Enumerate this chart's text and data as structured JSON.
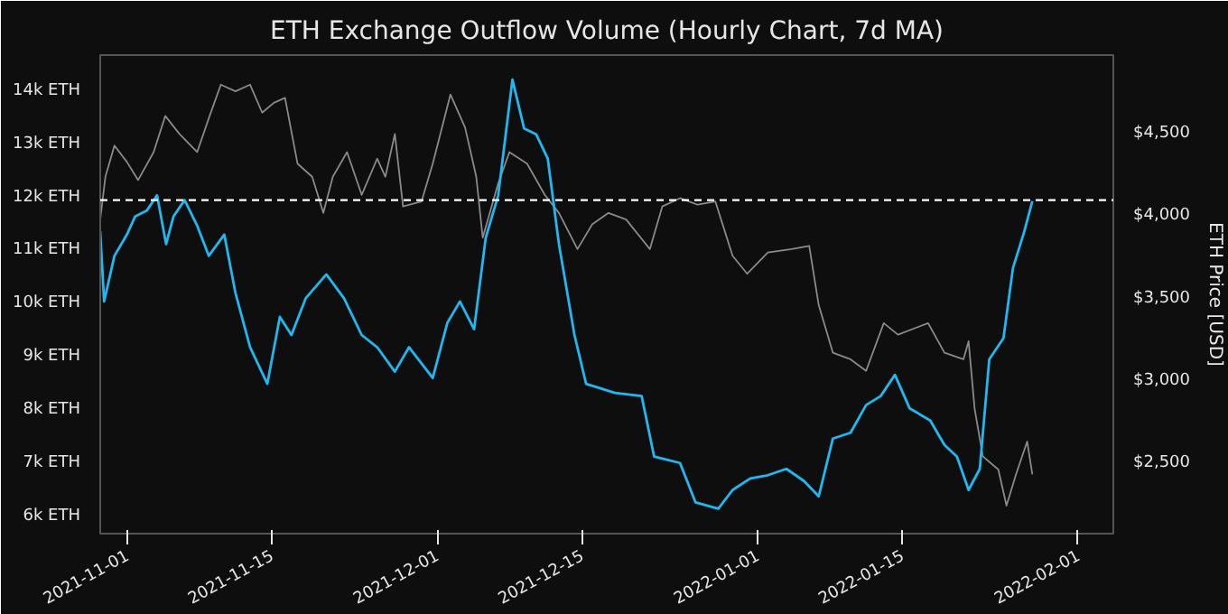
{
  "chart_data": {
    "type": "line",
    "title": "ETH Exchange Outflow Volume (Hourly Chart, 7d MA)",
    "y2label": "ETH Price [USD]",
    "xlim": [
      "2021-10-29T10:00",
      "2022-02-04T10:00"
    ],
    "xticks": [
      {
        "value": "2021-11-01",
        "label": "2021-11-01"
      },
      {
        "value": "2021-11-15",
        "label": "2021-11-15"
      },
      {
        "value": "2021-12-01",
        "label": "2021-12-01"
      },
      {
        "value": "2021-12-15",
        "label": "2021-12-15"
      },
      {
        "value": "2022-01-01",
        "label": "2022-01-01"
      },
      {
        "value": "2022-01-15",
        "label": "2022-01-15"
      },
      {
        "value": "2022-02-01",
        "label": "2022-02-01"
      }
    ],
    "ylim": [
      5670,
      14680
    ],
    "yticks": [
      {
        "value": 6000,
        "label": "6k ETH"
      },
      {
        "value": 7000,
        "label": "7k ETH"
      },
      {
        "value": 8000,
        "label": "8k ETH"
      },
      {
        "value": 9000,
        "label": "9k ETH"
      },
      {
        "value": 10000,
        "label": "10k ETH"
      },
      {
        "value": 11000,
        "label": "11k ETH"
      },
      {
        "value": 12000,
        "label": "12k ETH"
      },
      {
        "value": 13000,
        "label": "13k ETH"
      },
      {
        "value": 14000,
        "label": "14k ETH"
      }
    ],
    "y2lim": [
      2070,
      4980
    ],
    "y2ticks": [
      {
        "value": 2500,
        "label": "$2,500"
      },
      {
        "value": 3000,
        "label": "$3,000"
      },
      {
        "value": 3500,
        "label": "$3,500"
      },
      {
        "value": 4000,
        "label": "$4,000"
      },
      {
        "value": 4500,
        "label": "$4,500"
      }
    ],
    "grid": false,
    "ref_lines": [
      {
        "axis": "y",
        "value": 11950,
        "color": "#ffffff",
        "line_style": "dashed"
      }
    ],
    "series": [
      {
        "color": "#8a8a8a",
        "axis": "y2",
        "x": [
          "2021-10-29T10:00",
          "2021-10-29T22:00",
          "2021-10-30T19:00",
          "2021-11-01T00:00",
          "2021-11-02T02:00",
          "2021-11-03T14:00",
          "2021-11-04T17:00",
          "2021-11-06T02:00",
          "2021-11-07T19:00",
          "2021-11-09T00:00",
          "2021-11-10T02:00",
          "2021-11-11T12:00",
          "2021-11-12T22:00",
          "2021-11-14T02:00",
          "2021-11-15T05:00",
          "2021-11-16T07:00",
          "2021-11-17T12:00",
          "2021-11-18T22:00",
          "2021-11-20T00:00",
          "2021-11-20T22:00",
          "2021-11-22T07:00",
          "2021-11-23T17:00",
          "2021-11-25T05:00",
          "2021-11-26T00:00",
          "2021-11-26T22:00",
          "2021-11-27T17:00",
          "2021-11-29T12:00",
          "2021-11-30T14:00",
          "2021-12-02T07:00",
          "2021-12-03T17:00",
          "2021-12-04T19:00",
          "2021-12-05T10:00",
          "2021-12-06T22:00",
          "2021-12-08T00:00",
          "2021-12-09T17:00",
          "2021-12-11T10:00",
          "2021-12-12T19:00",
          "2021-12-14T14:00",
          "2021-12-16T00:00",
          "2021-12-17T14:00",
          "2021-12-19T07:00",
          "2021-12-21T14:00",
          "2021-12-22T19:00",
          "2021-12-24T12:00",
          "2021-12-26T05:00",
          "2021-12-27T22:00",
          "2021-12-29T14:00",
          "2021-12-31T00:00",
          "2022-01-02T00:00",
          "2022-01-04T07:00",
          "2022-01-06T00:00",
          "2022-01-06T22:00",
          "2022-01-08T07:00",
          "2022-01-10T00:00",
          "2022-01-11T12:00",
          "2022-01-13T05:00",
          "2022-01-14T14:00",
          "2022-01-17T12:00",
          "2022-01-19T02:00",
          "2022-01-20T22:00",
          "2022-01-21T10:00",
          "2022-01-22T00:00",
          "2022-01-22T19:00",
          "2022-01-24T07:00",
          "2022-01-25T02:00",
          "2022-01-26T00:00",
          "2022-01-27T02:00",
          "2022-01-27T14:00"
        ],
        "values": [
          3980,
          4240,
          4430,
          4330,
          4220,
          4390,
          4610,
          4500,
          4390,
          4610,
          4800,
          4760,
          4800,
          4630,
          4690,
          4720,
          4320,
          4240,
          4020,
          4240,
          4390,
          4130,
          4350,
          4240,
          4500,
          4060,
          4090,
          4320,
          4740,
          4540,
          4240,
          3870,
          4200,
          4390,
          4320,
          4130,
          4020,
          3800,
          3950,
          4020,
          3980,
          3800,
          4060,
          4110,
          4070,
          4090,
          3760,
          3650,
          3780,
          3800,
          3820,
          3460,
          3170,
          3130,
          3060,
          3350,
          3280,
          3350,
          3170,
          3130,
          3240,
          2830,
          2540,
          2460,
          2240,
          2430,
          2630,
          2430
        ]
      },
      {
        "color": "#1fb8f0",
        "x": [
          "2021-10-29T10:00",
          "2021-10-29T19:00",
          "2021-10-30T19:00",
          "2021-11-01T00:00",
          "2021-11-01T19:00",
          "2021-11-02T22:00",
          "2021-11-03T22:00",
          "2021-11-04T19:00",
          "2021-11-05T12:00",
          "2021-11-06T14:00",
          "2021-11-07T19:00",
          "2021-11-08T22:00",
          "2021-11-10T10:00",
          "2021-11-11T12:00",
          "2021-11-12T22:00",
          "2021-11-14T14:00",
          "2021-11-15T19:00",
          "2021-11-16T22:00",
          "2021-11-18T07:00",
          "2021-11-20T07:00",
          "2021-11-22T00:00",
          "2021-11-23T17:00",
          "2021-11-25T05:00",
          "2021-11-26T22:00",
          "2021-11-28T07:00",
          "2021-11-30T14:00",
          "2021-12-02T00:00",
          "2021-12-03T05:00",
          "2021-12-04T14:00",
          "2021-12-05T17:00",
          "2021-12-06T22:00",
          "2021-12-08T07:00",
          "2021-12-09T10:00",
          "2021-12-10T14:00",
          "2021-12-11T17:00",
          "2021-12-12T19:00",
          "2021-12-14T07:00",
          "2021-12-15T10:00",
          "2021-12-18T05:00",
          "2021-12-20T19:00",
          "2021-12-22T00:00",
          "2021-12-24T12:00",
          "2021-12-26T00:00",
          "2021-12-28T05:00",
          "2021-12-29T14:00",
          "2021-12-31T07:00",
          "2022-01-02T00:00",
          "2022-01-03T19:00",
          "2022-01-05T12:00",
          "2022-01-06T22:00",
          "2022-01-08T07:00",
          "2022-01-10T00:00",
          "2022-01-11T12:00",
          "2022-01-12T22:00",
          "2022-01-14T07:00",
          "2022-01-15T17:00",
          "2022-01-17T17:00",
          "2022-01-19T02:00",
          "2022-01-20T07:00",
          "2022-01-21T10:00",
          "2022-01-22T12:00",
          "2022-01-23T10:00",
          "2022-01-24T19:00",
          "2022-01-25T17:00",
          "2022-01-26T19:00",
          "2022-01-27T14:00"
        ],
        "values": [
          11360,
          10040,
          10900,
          11300,
          11640,
          11750,
          12040,
          11120,
          11640,
          11950,
          11470,
          10900,
          11300,
          10200,
          9180,
          8490,
          9750,
          9410,
          10100,
          10550,
          10100,
          9410,
          9180,
          8720,
          9180,
          8600,
          9640,
          10040,
          9520,
          11240,
          12040,
          14220,
          13300,
          13190,
          12730,
          11120,
          9410,
          8490,
          8320,
          8260,
          7120,
          7000,
          6260,
          6140,
          6490,
          6710,
          6770,
          6890,
          6660,
          6370,
          7460,
          7570,
          8090,
          8260,
          8660,
          8030,
          7800,
          7340,
          7120,
          6490,
          6890,
          8950,
          9350,
          10670,
          11350,
          11930
        ]
      }
    ]
  }
}
